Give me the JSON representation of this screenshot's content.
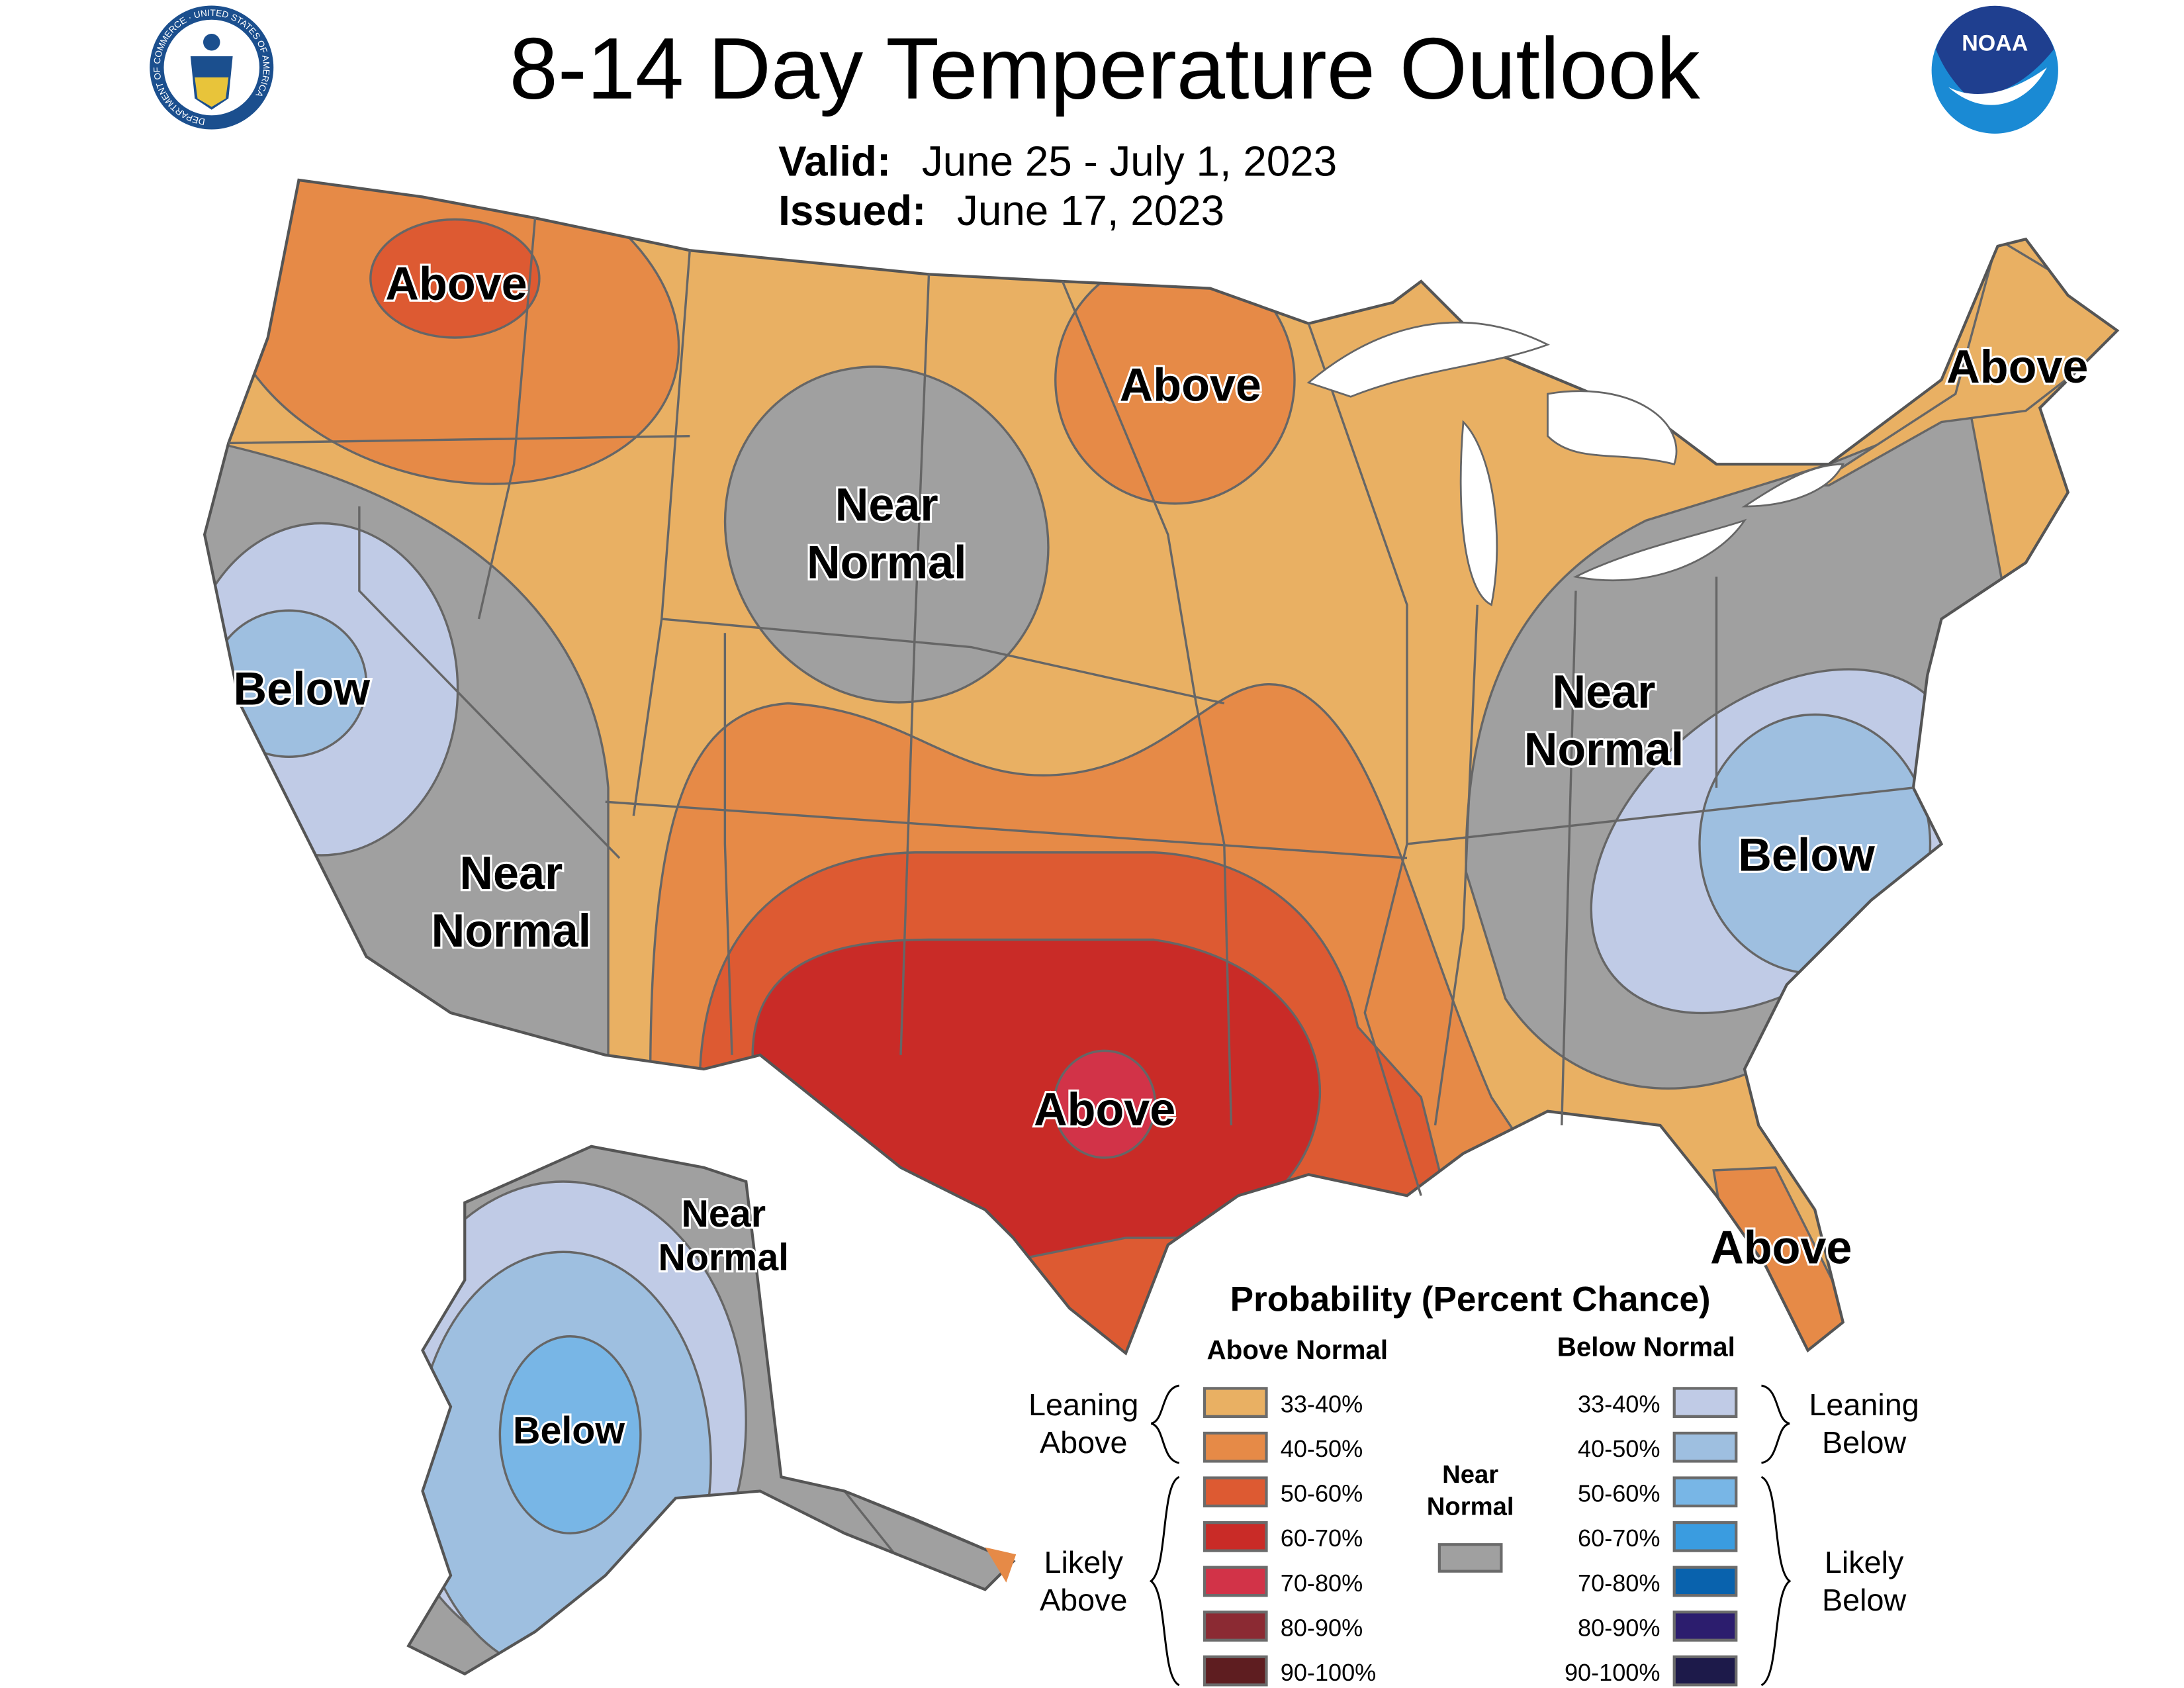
{
  "header": {
    "title": "8-14 Day Temperature Outlook",
    "valid_label": "Valid:",
    "valid_value": "June 25 - July 1, 2023",
    "issued_label": "Issued:",
    "issued_value": "June 17, 2023",
    "left_logo": "department-of-commerce-seal",
    "left_logo_text": "DEPARTMENT OF COMMERCE · UNITED STATES OF AMERICA",
    "right_logo": "noaa-logo",
    "right_logo_text": "NOAA"
  },
  "map_labels": {
    "nw_above": "Above",
    "mn_above": "Above",
    "ne_above": "Above",
    "central_near": [
      "Near",
      "Normal"
    ],
    "ca_below": "Below",
    "sw_near": [
      "Near",
      "Normal"
    ],
    "east_near": [
      "Near",
      "Normal"
    ],
    "se_below": "Below",
    "tx_above": "Above",
    "fl_above": "Above",
    "ak_near": [
      "Near",
      "Normal"
    ],
    "ak_below": "Below"
  },
  "colors": {
    "above_33_40": "#e9b063",
    "above_40_50": "#e68a47",
    "above_50_60": "#dd5a32",
    "above_60_70": "#c92b27",
    "above_70_80": "#d23348",
    "above_80_90": "#8b2a33",
    "above_90_100": "#5e1d20",
    "near_normal": "#a0a0a0",
    "below_33_40": "#c0cbe6",
    "below_40_50": "#9ebfe0",
    "below_50_60": "#78b6e6",
    "below_60_70": "#3a9ce0",
    "below_70_80": "#0962ad",
    "below_80_90": "#2c1d6e",
    "below_90_100": "#1d1a4a"
  },
  "legend": {
    "title": "Probability (Percent Chance)",
    "above_header": "Above Normal",
    "below_header": "Below Normal",
    "leaning_above": [
      "Leaning",
      "Above"
    ],
    "likely_above": [
      "Likely",
      "Above"
    ],
    "leaning_below": [
      "Leaning",
      "Below"
    ],
    "likely_below": [
      "Likely",
      "Below"
    ],
    "near_normal": [
      "Near",
      "Normal"
    ],
    "ranges": [
      "33-40%",
      "40-50%",
      "50-60%",
      "60-70%",
      "70-80%",
      "80-90%",
      "90-100%"
    ]
  }
}
